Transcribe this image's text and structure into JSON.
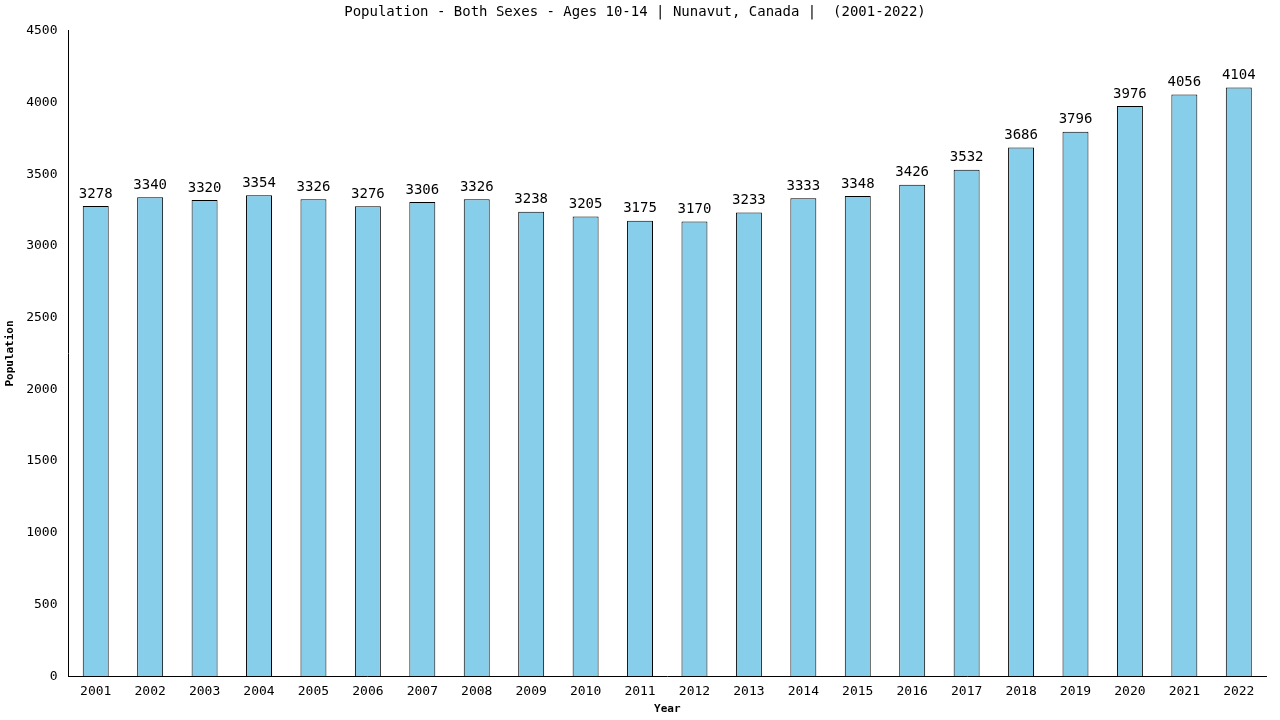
{
  "chart_data": {
    "type": "bar",
    "title": "Population - Both Sexes - Ages 10-14 | Nunavut, Canada |  (2001-2022)",
    "x_label": "Year",
    "y_label": "Population",
    "categories": [
      "2001",
      "2002",
      "2003",
      "2004",
      "2005",
      "2006",
      "2007",
      "2008",
      "2009",
      "2010",
      "2011",
      "2012",
      "2013",
      "2014",
      "2015",
      "2016",
      "2017",
      "2018",
      "2019",
      "2020",
      "2021",
      "2022"
    ],
    "values": [
      3278,
      3340,
      3320,
      3354,
      3326,
      3276,
      3306,
      3326,
      3238,
      3205,
      3175,
      3170,
      3233,
      3333,
      3348,
      3426,
      3532,
      3686,
      3796,
      3976,
      4056,
      4104
    ],
    "color": "#87ceeb",
    "ylim": [
      0,
      4500
    ],
    "yticks": [
      0,
      500,
      1000,
      1500,
      2000,
      2500,
      3000,
      3500,
      4000,
      4500
    ],
    "grid": false,
    "data_labels": true
  }
}
